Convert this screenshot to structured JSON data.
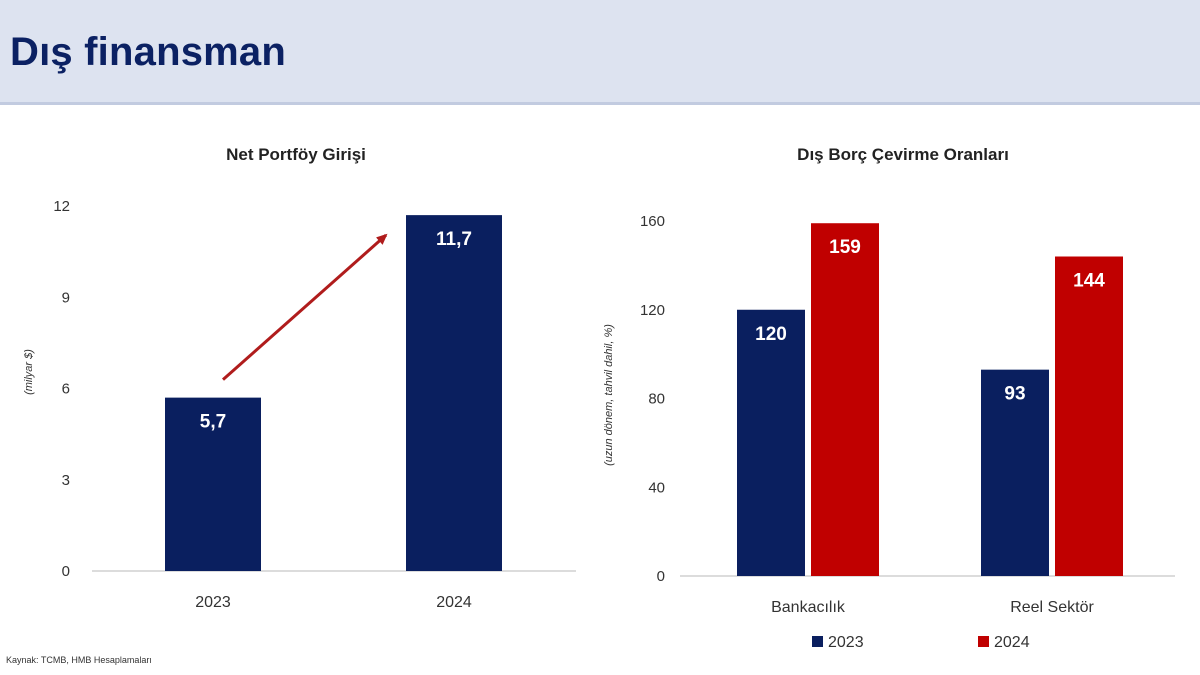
{
  "header": {
    "title": "Dış finansman"
  },
  "source": "Kaynak: TCMB, HMB Hesaplamaları",
  "colors": {
    "navy": "#0a1f5f",
    "red": "#c00000",
    "header_bg": "#dde3f0",
    "title": "#0b2163",
    "arrow": "#b01c1c"
  },
  "chart_data": [
    {
      "type": "bar",
      "title": "Net Portföy Girişi",
      "ylabel": "(milyar $)",
      "xlabel": "",
      "categories": [
        "2023",
        "2024"
      ],
      "values": [
        5.7,
        11.7
      ],
      "value_labels": [
        "5,7",
        "11,7"
      ],
      "ylim": [
        0,
        12
      ],
      "yticks": [
        0,
        3,
        6,
        9,
        12
      ],
      "ytick_labels": [
        "0",
        "3",
        "6",
        "9",
        "12"
      ],
      "annotations": [
        "upward arrow from 2023 bar to 2024 bar"
      ],
      "grid": false
    },
    {
      "type": "bar",
      "title": "Dış Borç Çevirme Oranları",
      "ylabel": "(uzun dönem, tahvil dahil, %)",
      "xlabel": "",
      "categories": [
        "Bankacılık",
        "Reel Sektör"
      ],
      "series": [
        {
          "name": "2023",
          "values": [
            120,
            93
          ],
          "value_labels": [
            "120",
            "93"
          ]
        },
        {
          "name": "2024",
          "values": [
            159,
            144
          ],
          "value_labels": [
            "159",
            "144"
          ]
        }
      ],
      "ylim": [
        0,
        160
      ],
      "yticks": [
        0,
        40,
        80,
        120,
        160
      ],
      "ytick_labels": [
        "0",
        "40",
        "80",
        "120",
        "160"
      ],
      "legend": [
        "2023",
        "2024"
      ],
      "legend_position": "bottom",
      "grid": false
    }
  ]
}
